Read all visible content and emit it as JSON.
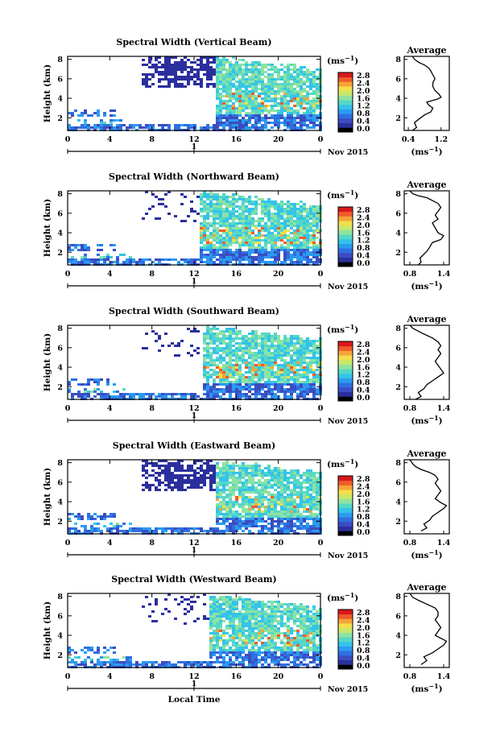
{
  "colors": {
    "colormap": [
      "#000000",
      "#2b2f9e",
      "#3b4cc0",
      "#2f6fe0",
      "#2b9bf0",
      "#34c3ea",
      "#56d8c6",
      "#8fe3a0",
      "#c8e86a",
      "#f3df4c",
      "#f6a43a",
      "#ef5b2b",
      "#d7191c"
    ],
    "axis": "#000000"
  },
  "chart_data": [
    {
      "type": "heatmap",
      "title": "Spectral Width (Vertical Beam)",
      "ylabel": "Height (km)",
      "xlabel": "",
      "x_ticks": [
        "0",
        "4",
        "8",
        "12",
        "16",
        "20",
        "0"
      ],
      "y_ticks": [
        "2",
        "4",
        "6",
        "8"
      ],
      "date_marker": "1",
      "date_label": "Nov 2015",
      "colorbar_unit": "(ms",
      "colorbar_unit_exp": "−1",
      "colorbar_unit_close": ")",
      "colorbar_ticks": [
        "0.0",
        "0.4",
        "0.8",
        "1.2",
        "1.6",
        "2.0",
        "2.4",
        "2.8"
      ],
      "profile": {
        "title": "Average",
        "xlabel": "(ms",
        "xlabel_exp": "−1",
        "xlabel_close": ")",
        "x_ticks": [
          "0.4",
          "1.2"
        ],
        "xlim": [
          0.3,
          1.4
        ],
        "y_ticks": [
          "2",
          "4",
          "6",
          "8"
        ],
        "x": [
          0.5,
          0.6,
          0.55,
          0.7,
          0.8,
          0.95,
          1.0,
          0.9,
          0.85,
          1.1,
          1.2,
          1.15,
          1.05,
          1.0,
          1.0,
          1.05,
          1.0,
          0.95,
          0.9,
          0.8,
          0.65,
          0.55,
          0.5
        ],
        "y": [
          0.7,
          1.0,
          1.5,
          2.0,
          2.3,
          2.6,
          3.0,
          3.3,
          3.6,
          3.9,
          4.1,
          4.4,
          4.8,
          5.2,
          5.6,
          6.0,
          6.4,
          6.8,
          7.1,
          7.4,
          7.7,
          8.0,
          8.3
        ]
      }
    },
    {
      "type": "heatmap",
      "title": "Spectral Width (Northward Beam)",
      "ylabel": "Height (km)",
      "xlabel": "",
      "x_ticks": [
        "0",
        "4",
        "8",
        "12",
        "16",
        "20",
        "0"
      ],
      "y_ticks": [
        "2",
        "4",
        "6",
        "8"
      ],
      "date_marker": "1",
      "date_label": "Nov 2015",
      "colorbar_unit": "(ms",
      "colorbar_unit_exp": "−1",
      "colorbar_unit_close": ")",
      "colorbar_ticks": [
        "0.0",
        "0.4",
        "0.8",
        "1.2",
        "1.6",
        "2.0",
        "2.4",
        "2.8"
      ],
      "profile": {
        "title": "Average",
        "xlabel": "(ms",
        "xlabel_exp": "−1",
        "xlabel_close": ")",
        "x_ticks": [
          "0.8",
          "1.4"
        ],
        "xlim": [
          0.7,
          1.5
        ],
        "y_ticks": [
          "2",
          "4",
          "6",
          "8"
        ],
        "x": [
          0.95,
          1.0,
          0.98,
          1.05,
          1.1,
          1.15,
          1.2,
          1.35,
          1.4,
          1.3,
          1.25,
          1.2,
          1.3,
          1.25,
          1.3,
          1.35,
          1.3,
          1.2,
          1.1,
          0.95,
          0.85,
          0.8
        ],
        "y": [
          0.7,
          1.0,
          1.4,
          1.8,
          2.1,
          2.5,
          3.0,
          3.3,
          3.7,
          4.0,
          4.5,
          5.0,
          5.4,
          5.8,
          6.2,
          6.6,
          7.0,
          7.3,
          7.6,
          7.8,
          8.0,
          8.3
        ]
      }
    },
    {
      "type": "heatmap",
      "title": "Spectral Width (Southward Beam)",
      "ylabel": "Height (km)",
      "xlabel": "",
      "x_ticks": [
        "0",
        "4",
        "8",
        "12",
        "16",
        "20",
        "0"
      ],
      "y_ticks": [
        "2",
        "4",
        "6",
        "8"
      ],
      "date_marker": "1",
      "date_label": "Nov 2015",
      "colorbar_unit": "(ms",
      "colorbar_unit_exp": "−1",
      "colorbar_unit_close": ")",
      "colorbar_ticks": [
        "0.0",
        "0.4",
        "0.8",
        "1.2",
        "1.6",
        "2.0",
        "2.4",
        "2.8"
      ],
      "profile": {
        "title": "Average",
        "xlabel": "(ms",
        "xlabel_exp": "−1",
        "xlabel_close": ")",
        "x_ticks": [
          "0.8",
          "1.4"
        ],
        "xlim": [
          0.7,
          1.5
        ],
        "y_ticks": [
          "2",
          "4",
          "6",
          "8"
        ],
        "x": [
          0.9,
          1.0,
          0.95,
          1.05,
          1.1,
          1.2,
          1.3,
          1.4,
          1.35,
          1.3,
          1.25,
          1.3,
          1.35,
          1.3,
          1.35,
          1.3,
          1.2,
          1.05,
          0.95,
          0.85,
          0.8
        ],
        "y": [
          0.7,
          1.0,
          1.4,
          1.8,
          2.2,
          2.6,
          3.0,
          3.4,
          3.8,
          4.2,
          4.6,
          5.0,
          5.4,
          5.8,
          6.2,
          6.6,
          7.0,
          7.4,
          7.7,
          8.0,
          8.3
        ]
      }
    },
    {
      "type": "heatmap",
      "title": "Spectral Width (Eastward Beam)",
      "ylabel": "Height (km)",
      "xlabel": "",
      "x_ticks": [
        "0",
        "4",
        "8",
        "12",
        "16",
        "20",
        "0"
      ],
      "y_ticks": [
        "2",
        "4",
        "6",
        "8"
      ],
      "date_marker": "1",
      "date_label": "Nov 2015",
      "colorbar_unit": "(ms",
      "colorbar_unit_exp": "−1",
      "colorbar_unit_close": ")",
      "colorbar_ticks": [
        "0.0",
        "0.4",
        "0.8",
        "1.2",
        "1.6",
        "2.0",
        "2.4",
        "2.8"
      ],
      "profile": {
        "title": "Average",
        "xlabel": "(ms",
        "xlabel_exp": "−1",
        "xlabel_close": ")",
        "x_ticks": [
          "0.8",
          "1.4"
        ],
        "xlim": [
          0.7,
          1.5
        ],
        "y_ticks": [
          "2",
          "4",
          "6",
          "8"
        ],
        "x": [
          1.0,
          1.1,
          1.05,
          1.15,
          1.2,
          1.3,
          1.4,
          1.45,
          1.35,
          1.25,
          1.3,
          1.35,
          1.3,
          1.25,
          1.3,
          1.25,
          1.15,
          1.0,
          0.9,
          0.85,
          0.8
        ],
        "y": [
          1.0,
          1.3,
          1.7,
          2.1,
          2.5,
          2.9,
          3.3,
          3.6,
          3.9,
          4.3,
          4.7,
          5.1,
          5.5,
          5.9,
          6.3,
          6.7,
          7.0,
          7.3,
          7.6,
          7.9,
          8.3
        ]
      }
    },
    {
      "type": "heatmap",
      "title": "Spectral Width (Westward Beam)",
      "ylabel": "Height (km)",
      "xlabel": "Local Time",
      "x_ticks": [
        "0",
        "4",
        "8",
        "12",
        "16",
        "20",
        "0"
      ],
      "y_ticks": [
        "2",
        "4",
        "6",
        "8"
      ],
      "date_marker": "1",
      "date_label": "Nov 2015",
      "colorbar_unit": "(ms",
      "colorbar_unit_exp": "−1",
      "colorbar_unit_close": ")",
      "colorbar_ticks": [
        "0.0",
        "0.4",
        "0.8",
        "1.2",
        "1.6",
        "2.0",
        "2.4",
        "2.8"
      ],
      "profile": {
        "title": "Average",
        "xlabel": "(ms",
        "xlabel_exp": "−1",
        "xlabel_close": ")",
        "x_ticks": [
          "0.8",
          "1.4"
        ],
        "xlim": [
          0.7,
          1.5
        ],
        "y_ticks": [
          "2",
          "4",
          "6",
          "8"
        ],
        "x": [
          1.0,
          1.1,
          1.05,
          1.2,
          1.3,
          1.4,
          1.45,
          1.35,
          1.25,
          1.3,
          1.35,
          1.3,
          1.25,
          1.3,
          1.3,
          1.25,
          1.1,
          0.95,
          0.85,
          0.8
        ],
        "y": [
          1.0,
          1.4,
          1.8,
          2.2,
          2.6,
          3.0,
          3.4,
          3.7,
          4.0,
          4.4,
          4.8,
          5.2,
          5.6,
          6.0,
          6.4,
          6.8,
          7.2,
          7.6,
          7.9,
          8.3
        ]
      }
    }
  ]
}
